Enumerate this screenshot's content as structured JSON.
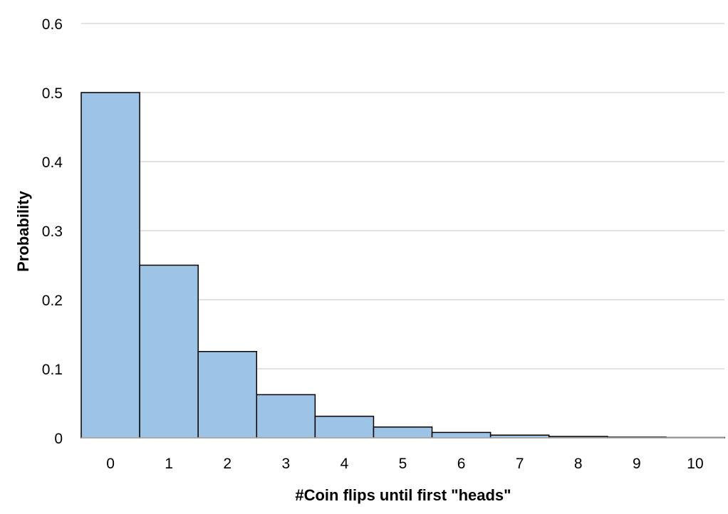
{
  "chart_data": {
    "type": "bar",
    "categories": [
      "0",
      "1",
      "2",
      "3",
      "4",
      "5",
      "6",
      "7",
      "8",
      "9",
      "10"
    ],
    "series": [
      {
        "values": [
          0.5,
          0.25,
          0.125,
          0.0625,
          0.03125,
          0.015625,
          0.0078125,
          0.00390625,
          0.001953125,
          0.0009765625,
          0.00048828125
        ]
      }
    ],
    "xlabel": "#Coin flips until first \"heads\"",
    "ylabel": "Probability",
    "ylim": [
      0,
      0.6
    ],
    "yticks": [
      "0",
      "0.1",
      "0.2",
      "0.3",
      "0.4",
      "0.5",
      "0.6"
    ],
    "grid": true,
    "legend": "none",
    "colors": {
      "bar_fill": "#9dc3e6",
      "bar_stroke": "#000000",
      "grid": "#d9d9d9",
      "axis": "#bfbfbf"
    }
  }
}
